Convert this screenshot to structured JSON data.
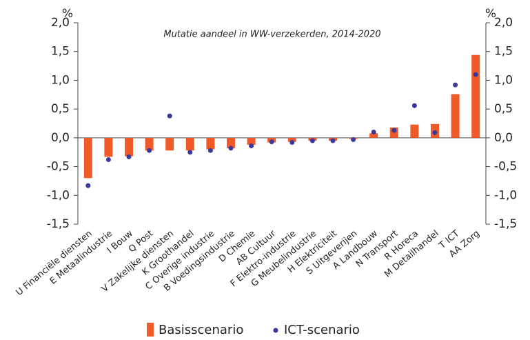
{
  "chart_data": {
    "type": "bar_dot",
    "title": "Mutatie aandeel in WW-verzekerden, 2014-2020",
    "ylabel": "%",
    "y2label": "%",
    "categories": [
      "U Financiële diensten",
      "E Metaalindustrie",
      "I Bouw",
      "Q Post",
      "V Zakelijke diensten",
      "K Groothandel",
      "C Overige industrie",
      "B Voedingsindustrie",
      "D Chemie",
      "AB Cultuur",
      "F Elektro-industrie",
      "G Meubelindustrie",
      "H Elektriciteit",
      "S Uitgeverijen",
      "A Landbouw",
      "N Transport",
      "R Horeca",
      "M Detailhandel",
      "T ICT",
      "AA Zorg"
    ],
    "series": [
      {
        "name": "Basisscenario",
        "color": "#f05a28",
        "values": [
          -0.7,
          -0.33,
          -0.32,
          -0.22,
          -0.22,
          -0.22,
          -0.2,
          -0.18,
          -0.12,
          -0.08,
          -0.07,
          -0.05,
          -0.05,
          -0.02,
          0.08,
          0.18,
          0.23,
          0.24,
          0.76,
          1.44
        ]
      },
      {
        "name": "ICT-scenario",
        "color": "#3a3a9c",
        "values": [
          -0.83,
          -0.38,
          -0.33,
          -0.22,
          0.38,
          -0.25,
          -0.22,
          -0.18,
          -0.14,
          -0.07,
          -0.08,
          -0.05,
          -0.05,
          -0.03,
          0.1,
          0.13,
          0.56,
          0.09,
          0.92,
          1.1
        ]
      }
    ],
    "ylim": [
      -1.5,
      2.0
    ],
    "yticks": [
      {
        "value": 2.0,
        "label": "2,0"
      },
      {
        "value": 1.5,
        "label": "1,5"
      },
      {
        "value": 1.0,
        "label": "1,0"
      },
      {
        "value": 0.5,
        "label": "0,5"
      },
      {
        "value": 0.0,
        "label": "0,0"
      },
      {
        "value": -0.5,
        "label": "-0,5"
      },
      {
        "value": -1.0,
        "label": "-1,0"
      },
      {
        "value": -1.5,
        "label": "-1,5"
      }
    ],
    "y2lim": [
      -1.5,
      2.0
    ],
    "y2ticks": [
      {
        "value": 2.0,
        "label": "2,0"
      },
      {
        "value": 1.5,
        "label": "1,5"
      },
      {
        "value": 1.0,
        "label": "1,0"
      },
      {
        "value": 0.5,
        "label": "0,5"
      },
      {
        "value": 0.0,
        "label": "0,0"
      },
      {
        "value": -0.5,
        "label": "-0,5"
      },
      {
        "value": -1.0,
        "label": "-1,0"
      },
      {
        "value": -1.5,
        "label": "-1,5"
      }
    ],
    "grid": false,
    "legend": "bottom"
  }
}
